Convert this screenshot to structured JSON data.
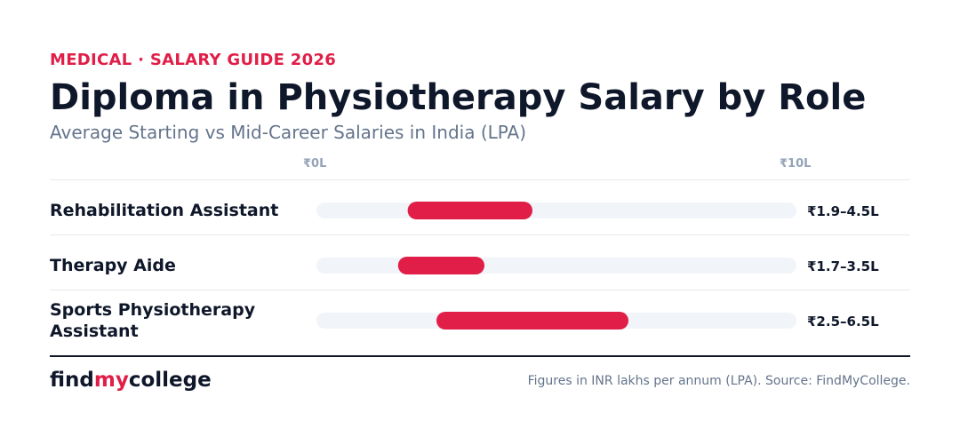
{
  "header": {
    "eyebrow": "MEDICAL · SALARY GUIDE 2026",
    "title": "Diploma in Physiotherapy Salary by Role",
    "subtitle": "Average Starting vs Mid-Career Salaries in India (LPA)"
  },
  "axis": {
    "min_label": "₹0L",
    "max_label": "₹10L"
  },
  "footer": {
    "brand_part1": "find",
    "brand_part2": "my",
    "brand_part3": "college",
    "note": "Figures in INR lakhs per annum (LPA). Source: FindMyCollege."
  },
  "colors": {
    "accent": "#e01e48",
    "title": "#0f172a",
    "subtitle": "#64748b",
    "axis_label": "#94a3b8",
    "track": "#f1f4f8",
    "divider": "#e6e8ec",
    "bottom_rule": "#0f172a"
  },
  "chart_data": {
    "type": "bar",
    "subtype": "range",
    "xlim": [
      0,
      10
    ],
    "unit": "LPA",
    "categories": [
      "Rehabilitation Assistant",
      "Therapy Aide",
      "Sports Physiotherapy Assistant"
    ],
    "ranges": [
      {
        "min": 1.9,
        "max": 4.5,
        "label": "₹1.9–4.5L"
      },
      {
        "min": 1.7,
        "max": 3.5,
        "label": "₹1.7–3.5L"
      },
      {
        "min": 2.5,
        "max": 6.5,
        "label": "₹2.5–6.5L"
      }
    ]
  }
}
